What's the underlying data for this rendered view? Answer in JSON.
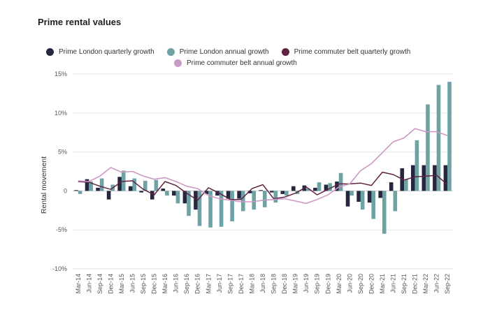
{
  "colors": {
    "london_quarterly": "#24273f",
    "london_annual": "#6ea3a5",
    "commuter_quarterly": "#5f2341",
    "commuter_annual": "#cc99c6",
    "grid": "#e6e6e6"
  },
  "chart_data": {
    "type": "bar",
    "title": "Prime rental values",
    "ylabel": "Rental movement",
    "xlabel": "",
    "ylim": [
      -10,
      15
    ],
    "yticks": [
      15,
      10,
      5,
      0,
      -5,
      -10
    ],
    "ytick_labels": [
      "15%",
      "10%",
      "5%",
      "0",
      "-5%",
      "-10%"
    ],
    "legend": [
      {
        "name": "Prime London quarterly growth",
        "key": "london_quarterly",
        "marker": "dot"
      },
      {
        "name": "Prime London annual growth",
        "key": "london_annual",
        "marker": "dot"
      },
      {
        "name": "Prime commuter belt quarterly growth",
        "key": "commuter_quarterly",
        "marker": "dot"
      },
      {
        "name": "Prime commuter belt annual growth",
        "key": "commuter_annual",
        "marker": "dot"
      }
    ],
    "categories": [
      "Mar-14",
      "Jun-14",
      "Sep-14",
      "Dec-14",
      "Mar-15",
      "Jun-15",
      "Sep-15",
      "Dec-15",
      "Mar-16",
      "Jun-16",
      "Sep-16",
      "Dec-16",
      "Mar-17",
      "Jun-17",
      "Sep-17",
      "Dec-17",
      "Mar-18",
      "Jun-18",
      "Sep-18",
      "Dec-18",
      "Mar-19",
      "Jun-19",
      "Sep-19",
      "Dec-19",
      "Mar-20",
      "Jun-20",
      "Sep-20",
      "Dec-20",
      "Mar-21",
      "Jun-21",
      "Sep-21",
      "Dec-21",
      "Mar-22",
      "Jun-22",
      "Sep-22"
    ],
    "series": [
      {
        "name": "Prime London quarterly growth",
        "key": "london_quarterly",
        "kind": "bar",
        "values": [
          0.1,
          1.5,
          0.4,
          -1.1,
          1.8,
          0.6,
          -0.2,
          -1.1,
          0.3,
          -0.6,
          -1.6,
          -2.4,
          -0.4,
          -0.6,
          -1.0,
          -1.0,
          -0.3,
          0.1,
          -0.2,
          -0.4,
          0.6,
          0.7,
          0.4,
          0.8,
          1.2,
          -2.0,
          -1.4,
          -1.5,
          -0.9,
          1.1,
          2.9,
          3.3,
          3.3,
          3.3,
          3.3
        ]
      },
      {
        "name": "Prime London annual growth",
        "key": "london_annual",
        "kind": "bar",
        "values": [
          -0.4,
          1.2,
          1.6,
          0.8,
          2.6,
          1.6,
          1.3,
          1.4,
          -0.6,
          -1.6,
          -3.2,
          -4.5,
          -4.7,
          -4.6,
          -3.9,
          -2.6,
          -2.4,
          -2.1,
          -1.5,
          -0.6,
          -0.4,
          0.3,
          1.1,
          1.0,
          2.3,
          -0.6,
          -2.4,
          -3.6,
          -5.5,
          -2.6,
          1.5,
          6.5,
          11.1,
          13.6,
          14.0
        ]
      },
      {
        "name": "Prime commuter belt quarterly growth",
        "key": "commuter_quarterly",
        "kind": "line",
        "values": [
          1.2,
          1.1,
          0.6,
          0.2,
          1.2,
          1.3,
          0.2,
          -0.5,
          1.2,
          0.7,
          -0.3,
          -1.2,
          0.4,
          -0.3,
          -1.1,
          -1.1,
          0.3,
          0.8,
          -1.0,
          -0.8,
          -0.3,
          0.5,
          -0.5,
          0.2,
          0.9,
          0.9,
          1.0,
          0.7,
          2.4,
          2.1,
          1.4,
          1.8,
          1.9,
          2.0,
          0.8
        ]
      },
      {
        "name": "Prime commuter belt annual growth",
        "key": "commuter_annual",
        "kind": "line",
        "values": [
          1.3,
          1.2,
          1.9,
          3.0,
          2.4,
          2.5,
          1.9,
          1.5,
          1.7,
          1.2,
          0.6,
          0.3,
          -0.6,
          -1.0,
          -1.2,
          -1.4,
          -1.4,
          -1.2,
          -1.1,
          -1.0,
          -1.3,
          -1.6,
          -1.1,
          -0.5,
          0.5,
          0.9,
          2.6,
          3.5,
          4.9,
          6.3,
          6.8,
          8.0,
          7.6,
          7.6,
          7.1
        ]
      }
    ]
  }
}
